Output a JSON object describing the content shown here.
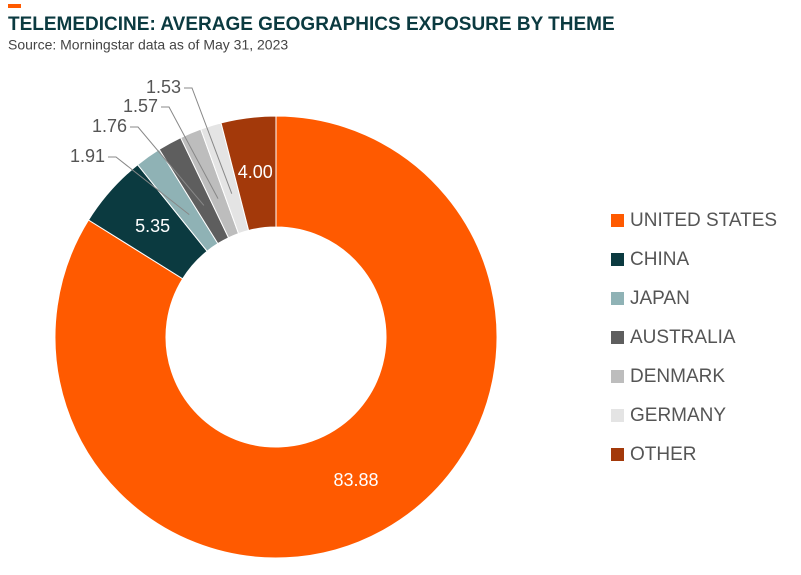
{
  "chart_data": {
    "type": "donut",
    "title": "TELEMEDICINE: AVERAGE GEOGRAPHICS EXPOSURE BY THEME",
    "subtitle": "Source: Morningstar data as of May 31, 2023",
    "categories": [
      "UNITED STATES",
      "CHINA",
      "JAPAN",
      "AUSTRALIA",
      "DENMARK",
      "GERMANY",
      "OTHER"
    ],
    "values": [
      83.88,
      5.35,
      1.91,
      1.76,
      1.57,
      1.53,
      4.0
    ],
    "value_labels": [
      "83.88",
      "5.35",
      "1.91",
      "1.76",
      "1.57",
      "1.53",
      "4.00"
    ],
    "colors": [
      "#ff5a00",
      "#0b3a40",
      "#8fb2b5",
      "#5e5e5e",
      "#bdbdbd",
      "#e4e4e4",
      "#a3390a"
    ],
    "legend": "right"
  }
}
